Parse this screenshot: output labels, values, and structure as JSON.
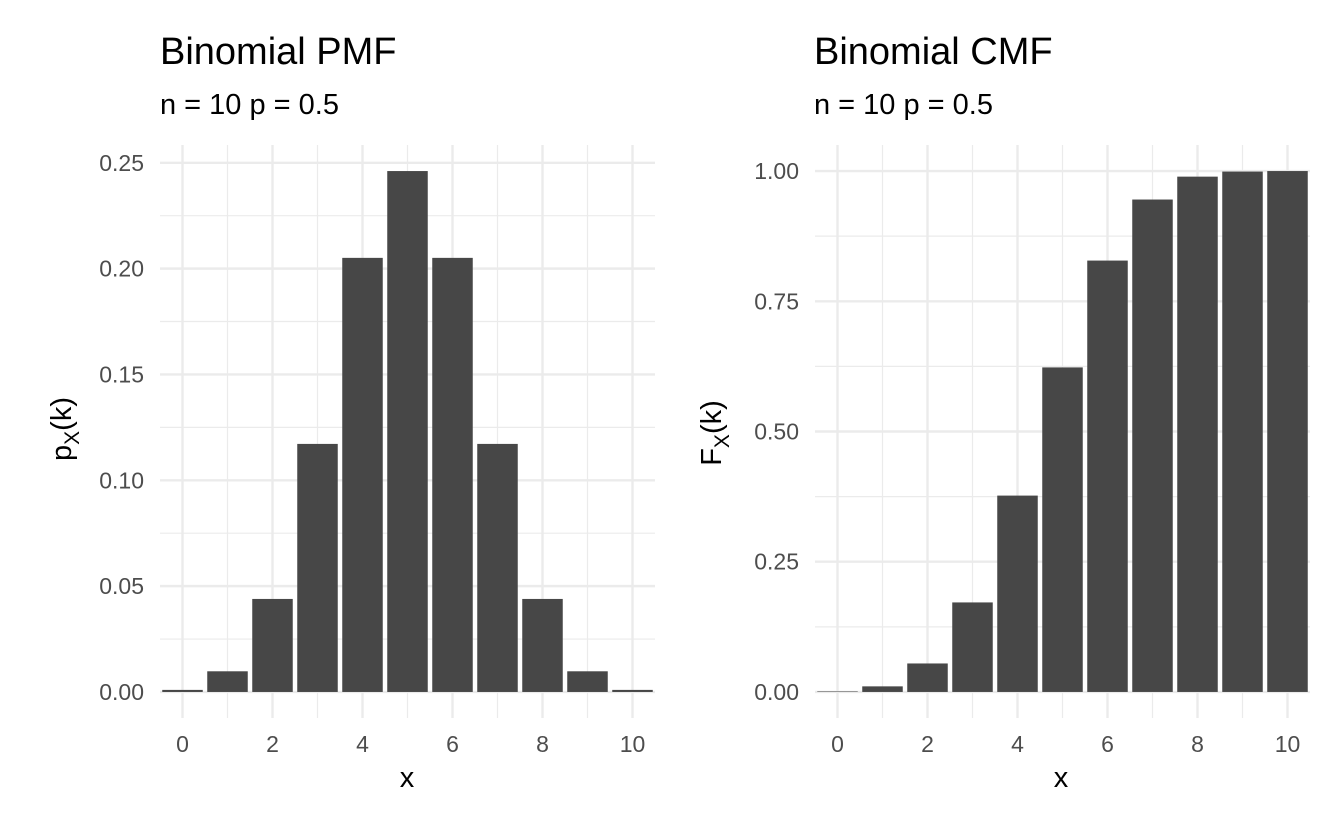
{
  "chart_data": [
    {
      "type": "bar",
      "title": "Binomial PMF",
      "subtitle": "n = 10 p = 0.5",
      "xlabel": "x",
      "ylabel": {
        "base": "p",
        "sub": "X",
        "rest": "(k)"
      },
      "x": [
        0,
        1,
        2,
        3,
        4,
        5,
        6,
        7,
        8,
        9,
        10
      ],
      "values": [
        0.000977,
        0.009766,
        0.043945,
        0.117188,
        0.205078,
        0.246094,
        0.205078,
        0.117188,
        0.043945,
        0.009766,
        0.000977
      ],
      "xlim": [
        -0.5,
        10.5
      ],
      "ylim": [
        -0.0123,
        0.2584
      ],
      "xticks": [
        0,
        2,
        4,
        6,
        8,
        10
      ],
      "xtick_labels": [
        "0",
        "2",
        "4",
        "6",
        "8",
        "10"
      ],
      "yticks": [
        0,
        0.05,
        0.1,
        0.15,
        0.2,
        0.25
      ],
      "ytick_labels": [
        "0.00",
        "0.05",
        "0.10",
        "0.15",
        "0.20",
        "0.25"
      ],
      "bar_color": "#474747",
      "grid": true
    },
    {
      "type": "bar",
      "title": "Binomial CMF",
      "subtitle": "n = 10 p = 0.5",
      "xlabel": "x",
      "ylabel": {
        "base": "F",
        "sub": "X",
        "rest": "(k)"
      },
      "x": [
        0,
        1,
        2,
        3,
        4,
        5,
        6,
        7,
        8,
        9,
        10
      ],
      "values": [
        0.000977,
        0.010742,
        0.054688,
        0.171875,
        0.376953,
        0.623047,
        0.828125,
        0.945313,
        0.989258,
        0.999023,
        1.0
      ],
      "xlim": [
        -0.5,
        10.5
      ],
      "ylim": [
        -0.05,
        1.05
      ],
      "xticks": [
        0,
        2,
        4,
        6,
        8,
        10
      ],
      "xtick_labels": [
        "0",
        "2",
        "4",
        "6",
        "8",
        "10"
      ],
      "yticks": [
        0,
        0.25,
        0.5,
        0.75,
        1.0
      ],
      "ytick_labels": [
        "0.00",
        "0.25",
        "0.50",
        "0.75",
        "1.00"
      ],
      "bar_color": "#474747",
      "grid": true
    }
  ]
}
